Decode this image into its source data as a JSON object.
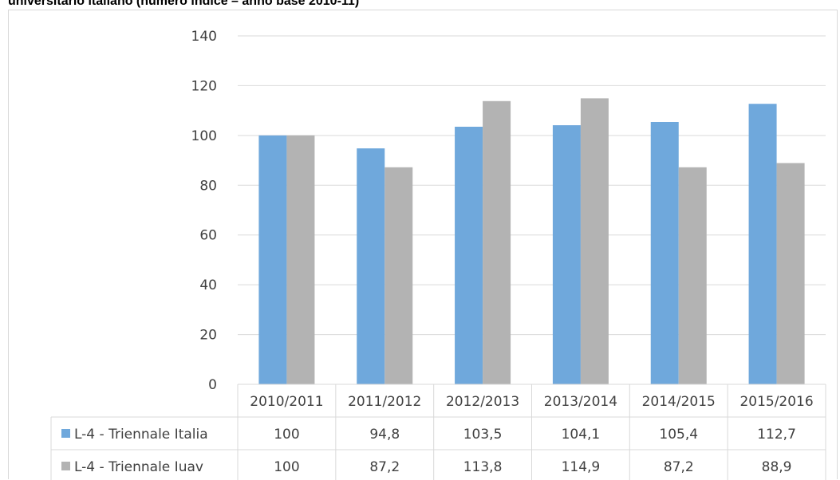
{
  "title": "universitario italiano (numero indice – anno base 2010-11)",
  "chart_data": {
    "type": "bar",
    "categories": [
      "2010/2011",
      "2011/2012",
      "2012/2013",
      "2013/2014",
      "2014/2015",
      "2015/2016"
    ],
    "series": [
      {
        "name": "L-4 - Triennale Italia",
        "color": "#6fa8dc",
        "values": [
          100,
          94.8,
          103.5,
          104.1,
          105.4,
          112.7
        ],
        "labels": [
          "100",
          "94,8",
          "103,5",
          "104,1",
          "105,4",
          "112,7"
        ]
      },
      {
        "name": "L-4 - Triennale Iuav",
        "color": "#b3b3b3",
        "values": [
          100,
          87.2,
          113.8,
          114.9,
          87.2,
          88.9
        ],
        "labels": [
          "100",
          "87,2",
          "113,8",
          "114,9",
          "87,2",
          "88,9"
        ]
      }
    ],
    "yticks": [
      0,
      20,
      40,
      60,
      80,
      100,
      120,
      140
    ],
    "ylim": [
      0,
      140
    ],
    "grid": true,
    "legend": "data-table"
  }
}
